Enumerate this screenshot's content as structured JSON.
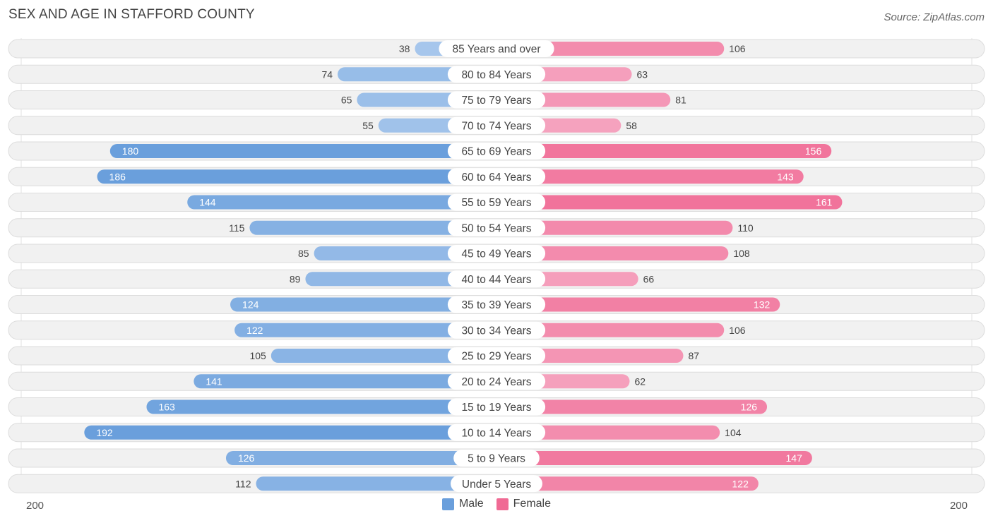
{
  "title": "SEX AND AGE IN STAFFORD COUNTY",
  "source": "Source: ZipAtlas.com",
  "colors": {
    "male_light": "#a6c6ec",
    "male_dark": "#6a9fdc",
    "female_light": "#f6aac4",
    "female_dark": "#f06a94",
    "row_bg": "#f1f1f1",
    "row_border": "#dcdcdc"
  },
  "legend": {
    "male": "Male",
    "female": "Female"
  },
  "axis": {
    "left_label": "200",
    "right_label": "200"
  },
  "chart_data": {
    "type": "bar",
    "orientation": "horizontal-diverging",
    "categories": [
      "85 Years and over",
      "80 to 84 Years",
      "75 to 79 Years",
      "70 to 74 Years",
      "65 to 69 Years",
      "60 to 64 Years",
      "55 to 59 Years",
      "50 to 54 Years",
      "45 to 49 Years",
      "40 to 44 Years",
      "35 to 39 Years",
      "30 to 34 Years",
      "25 to 29 Years",
      "20 to 24 Years",
      "15 to 19 Years",
      "10 to 14 Years",
      "5 to 9 Years",
      "Under 5 Years"
    ],
    "series": [
      {
        "name": "Male",
        "values": [
          38,
          74,
          65,
          55,
          180,
          186,
          144,
          115,
          85,
          89,
          124,
          122,
          105,
          141,
          163,
          192,
          126,
          112
        ]
      },
      {
        "name": "Female",
        "values": [
          106,
          63,
          81,
          58,
          156,
          143,
          161,
          110,
          108,
          66,
          132,
          106,
          87,
          62,
          126,
          104,
          147,
          122
        ]
      }
    ],
    "xlim": [
      -200,
      200
    ],
    "legend_position": "bottom-center"
  }
}
